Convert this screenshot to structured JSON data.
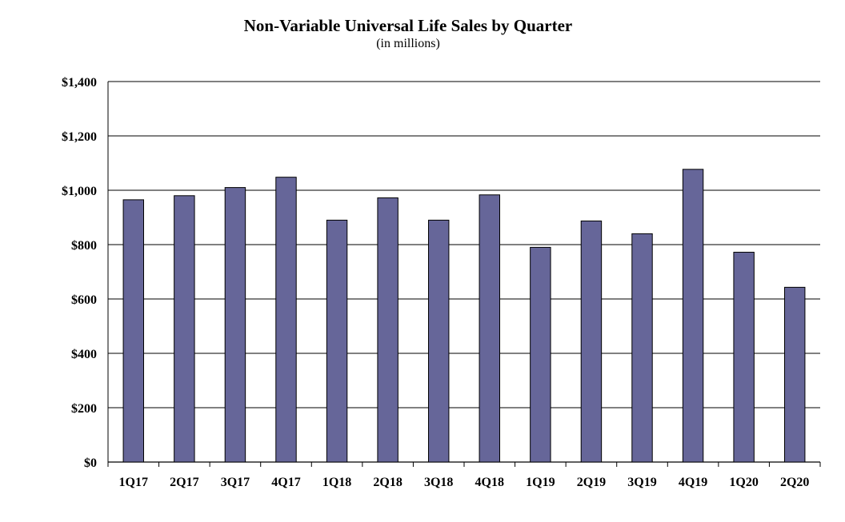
{
  "chart_data": {
    "type": "bar",
    "title": "Non-Variable Universal Life Sales by Quarter",
    "subtitle": "(in millions)",
    "xlabel": "",
    "ylabel": "",
    "categories": [
      "1Q17",
      "2Q17",
      "3Q17",
      "4Q17",
      "1Q18",
      "2Q18",
      "3Q18",
      "4Q18",
      "1Q19",
      "2Q19",
      "3Q19",
      "4Q19",
      "1Q20",
      "2Q20"
    ],
    "values": [
      965,
      980,
      1010,
      1048,
      890,
      972,
      890,
      983,
      790,
      887,
      840,
      1077,
      772,
      643
    ],
    "ylim": [
      0,
      1400
    ],
    "yticks": [
      0,
      200,
      400,
      600,
      800,
      1000,
      1200,
      1400
    ],
    "ytick_labels": [
      "$0",
      "$200",
      "$400",
      "$600",
      "$800",
      "$1,000",
      "$1,200",
      "$1,400"
    ],
    "grid": true,
    "legend": "none",
    "colors": {
      "bar": "#666699",
      "bar_stroke": "#000000",
      "grid": "#000000"
    }
  }
}
